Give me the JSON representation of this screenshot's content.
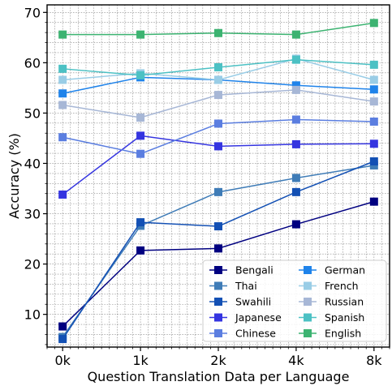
{
  "chart_data": {
    "type": "line",
    "xlabel": "Question Translation Data per Language",
    "ylabel": "Accuracy (%)",
    "categories": [
      "0k",
      "1k",
      "2k",
      "4k",
      "8k"
    ],
    "ylim": [
      3.5,
      71.5
    ],
    "yticks": [
      10,
      20,
      30,
      40,
      50,
      60,
      70
    ],
    "grid": "on",
    "legend_position": "bottom-right",
    "legend_columns": 2,
    "series": [
      {
        "name": "Bengali",
        "color": "#000080",
        "values": [
          7.6,
          22.7,
          23.1,
          27.9,
          32.4
        ]
      },
      {
        "name": "Thai",
        "color": "#3f7cb7",
        "values": [
          5.5,
          27.6,
          34.3,
          37.1,
          39.6
        ]
      },
      {
        "name": "Swahili",
        "color": "#1350b4",
        "values": [
          5.1,
          28.3,
          27.5,
          34.3,
          40.4
        ]
      },
      {
        "name": "Japanese",
        "color": "#3434e0",
        "values": [
          33.8,
          45.5,
          43.4,
          43.8,
          43.9
        ]
      },
      {
        "name": "Chinese",
        "color": "#5b7ee0",
        "values": [
          45.2,
          41.9,
          47.9,
          48.7,
          48.3
        ]
      },
      {
        "name": "German",
        "color": "#1f83ea",
        "values": [
          53.9,
          57.1,
          56.6,
          55.5,
          54.7
        ]
      },
      {
        "name": "French",
        "color": "#99cde6",
        "values": [
          56.6,
          57.9,
          56.6,
          60.8,
          56.6
        ]
      },
      {
        "name": "Russian",
        "color": "#a7b7d6",
        "values": [
          51.6,
          49.1,
          53.6,
          54.6,
          52.3
        ]
      },
      {
        "name": "Spanish",
        "color": "#4cc1c4",
        "values": [
          58.8,
          57.5,
          59.1,
          60.6,
          59.6
        ]
      },
      {
        "name": "English",
        "color": "#3cb371",
        "values": [
          65.6,
          65.6,
          65.9,
          65.6,
          67.9
        ]
      }
    ]
  }
}
